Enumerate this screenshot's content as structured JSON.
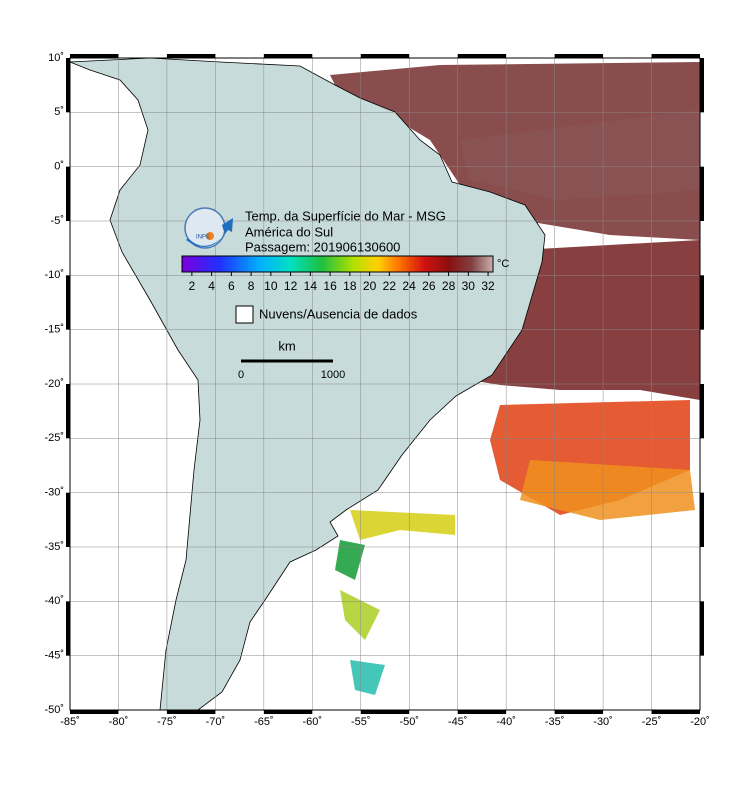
{
  "map": {
    "title_lines": [
      "Temp. da Superfície do Mar - MSG",
      "América do Sul",
      "Passagem: 201906130600"
    ],
    "logo": "INPE",
    "unit": "°C",
    "colorbar": {
      "range": [
        1,
        32.5
      ],
      "ticks": [
        2,
        4,
        6,
        8,
        10,
        12,
        14,
        16,
        18,
        20,
        22,
        24,
        26,
        28,
        30,
        32
      ]
    },
    "no_data_label": "Nuvens/Ausencia de dados",
    "scale": {
      "unit": "km",
      "start": "0",
      "end": "1000"
    },
    "lonlim": [
      -85,
      -20
    ],
    "latlim": [
      -50,
      10
    ],
    "lon_ticks": [
      {
        "value": -85,
        "label": "-85˚"
      },
      {
        "value": -80,
        "label": "-80˚"
      },
      {
        "value": -75,
        "label": "-75˚"
      },
      {
        "value": -70,
        "label": "-70˚"
      },
      {
        "value": -65,
        "label": "-65˚"
      },
      {
        "value": -60,
        "label": "-60˚"
      },
      {
        "value": -55,
        "label": "-55˚"
      },
      {
        "value": -50,
        "label": "-50˚"
      },
      {
        "value": -45,
        "label": "-45˚"
      },
      {
        "value": -40,
        "label": "-40˚"
      },
      {
        "value": -35,
        "label": "-35˚"
      },
      {
        "value": -30,
        "label": "-30˚"
      },
      {
        "value": -25,
        "label": "-25˚"
      },
      {
        "value": -20,
        "label": "-20˚"
      }
    ],
    "lat_ticks": [
      {
        "value": 10,
        "label": "10˚"
      },
      {
        "value": 5,
        "label": "5˚"
      },
      {
        "value": 0,
        "label": "0˚"
      },
      {
        "value": -5,
        "label": "-5˚"
      },
      {
        "value": -10,
        "label": "-10˚"
      },
      {
        "value": -15,
        "label": "-15˚"
      },
      {
        "value": -20,
        "label": "-20˚"
      },
      {
        "value": -25,
        "label": "-25˚"
      },
      {
        "value": -30,
        "label": "-30˚"
      },
      {
        "value": -35,
        "label": "-35˚"
      },
      {
        "value": -40,
        "label": "-40˚"
      },
      {
        "value": -45,
        "label": "-45˚"
      },
      {
        "value": -50,
        "label": "-50˚"
      }
    ]
  }
}
